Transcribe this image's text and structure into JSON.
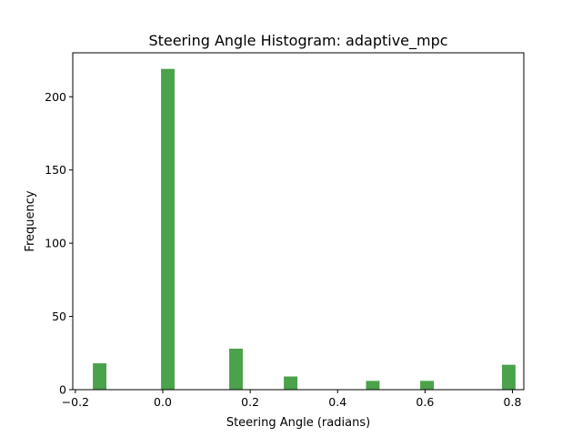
{
  "chart_data": {
    "type": "bar",
    "title": "Steering Angle Histogram: adaptive_mpc",
    "xlabel": "Steering Angle (radians)",
    "ylabel": "Frequency",
    "xlim": [
      -0.206,
      0.826
    ],
    "ylim": [
      0,
      230
    ],
    "xticks": [
      -0.2,
      0.0,
      0.2,
      0.4,
      0.6,
      0.8
    ],
    "xtick_labels": [
      "−0.2",
      "0.0",
      "0.2",
      "0.4",
      "0.6",
      "0.8"
    ],
    "yticks": [
      0,
      50,
      100,
      150,
      200
    ],
    "ytick_labels": [
      "0",
      "50",
      "100",
      "150",
      "200"
    ],
    "bar_color": "#4aa24a",
    "grid": false,
    "legend": "none",
    "bars": [
      {
        "x0": -0.16,
        "x1": -0.129,
        "value": 18
      },
      {
        "x0": -0.004,
        "x1": 0.027,
        "value": 219
      },
      {
        "x0": 0.152,
        "x1": 0.183,
        "value": 28
      },
      {
        "x0": 0.277,
        "x1": 0.308,
        "value": 9
      },
      {
        "x0": 0.465,
        "x1": 0.496,
        "value": 6
      },
      {
        "x0": 0.589,
        "x1": 0.62,
        "value": 6
      },
      {
        "x0": 0.776,
        "x1": 0.807,
        "value": 17
      }
    ]
  }
}
